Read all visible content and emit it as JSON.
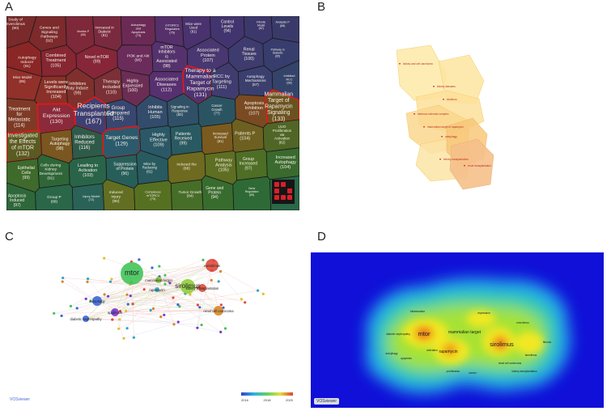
{
  "figure": {
    "panel_labels": [
      "A",
      "B",
      "C",
      "D"
    ]
  },
  "panel_a": {
    "cells": [
      {
        "label": "Study of Everolimus",
        "count": "(90)",
        "color": "#7a2a2a"
      },
      {
        "label": "Genes and Signaling Pathways",
        "count": "(92)",
        "color": "#7c2a2c"
      },
      {
        "label": "Months P",
        "count": "(65)",
        "color": "#7e2839"
      },
      {
        "label": "Increased in Diabetic",
        "count": "(81)",
        "color": "#7a2a3e"
      },
      {
        "label": "Autophagy and Apoptosis",
        "count": "(73)",
        "color": "#6a2a55"
      },
      {
        "label": "mTORC1 Regulates",
        "count": "(75)",
        "color": "#55306a"
      },
      {
        "label": "Mice were Used",
        "count": "(81)",
        "color": "#4a326e"
      },
      {
        "label": "Control Levels",
        "count": "(94)",
        "color": "#42356f"
      },
      {
        "label": "Fibrotic Model",
        "count": "(62)",
        "color": "#3d386c"
      },
      {
        "label": "Analysis P",
        "count": "(68)",
        "color": "#3a3a6a"
      },
      {
        "label": "Autophagy Inducer",
        "count": "(91)",
        "color": "#8a2626"
      },
      {
        "label": "Combined Treatment",
        "count": "(105)",
        "color": "#862630"
      },
      {
        "label": "Novel mTOR",
        "count": "(99)",
        "color": "#862638"
      },
      {
        "label": "PI3K and Akt",
        "count": "(90)",
        "color": "#6b2c5c"
      },
      {
        "label": "mTOR Inhibitors is Associated",
        "count": "(98)",
        "color": "#55326d"
      },
      {
        "label": "Associated Protein",
        "count": "(107)",
        "color": "#483770"
      },
      {
        "label": "Renal Tissues",
        "count": "(100)",
        "color": "#3e3b6f"
      },
      {
        "label": "Pathway in Diabetic",
        "count": "(65)",
        "color": "#373d6c"
      },
      {
        "label": "Mice Model",
        "count": "(85)",
        "color": "#92302a"
      },
      {
        "label": "Levels were Significantly Increased",
        "count": "(104)",
        "color": "#8a3028"
      },
      {
        "label": "Inhibitors may Induce",
        "count": "(99)",
        "color": "#80302c"
      },
      {
        "label": "Therapy Included",
        "count": "(110)",
        "color": "#7a3036"
      },
      {
        "label": "Highly Expressed",
        "count": "(100)",
        "color": "#6c2d55"
      },
      {
        "label": "Associated Diseases",
        "count": "(112)",
        "color": "#573070"
      },
      {
        "label": "Therapy to a Mammalian Target of Rapamycin",
        "count": "(131)",
        "color": "#4d3373"
      },
      {
        "label": "RCC by Targeting",
        "count": "(111)",
        "color": "#413c70"
      },
      {
        "label": "Autophagy Mechanisms",
        "count": "(87)",
        "color": "#3a3f6e"
      },
      {
        "label": "Inhibited RCC",
        "count": "(68)",
        "color": "#344369"
      },
      {
        "label": "Treatment for Metastatic",
        "count": "(114)",
        "color": "#7e3a26"
      },
      {
        "label": "Akt Expression",
        "count": "(130)",
        "color": "#8a2a3a"
      },
      {
        "label": "Recipients Transplanted",
        "count": "(167)",
        "color": "#3e3f72"
      },
      {
        "label": "Group Compared",
        "count": "(115)",
        "color": "#38476f"
      },
      {
        "label": "Inhibits Human",
        "count": "(105)",
        "color": "#334c6b"
      },
      {
        "label": "Signaling in Response",
        "count": "(82)",
        "color": "#2f5066"
      },
      {
        "label": "Cancer Growth",
        "count": "(77)",
        "color": "#2b5463"
      },
      {
        "label": "Apoptosis Inhibition",
        "count": "(107)",
        "color": "#7a4a22"
      },
      {
        "label": "Mammalian Target of Rapamycin Signaling",
        "count": "(133)",
        "color": "#6a5220"
      },
      {
        "label": "Investigated the Effects of mTOR",
        "count": "(132)",
        "color": "#5a5a22"
      },
      {
        "label": "Targeting Autophagy",
        "count": "(98)",
        "color": "#7a5620"
      },
      {
        "label": "Inhibitors Reduced",
        "count": "(116)",
        "color": "#2f5a4a"
      },
      {
        "label": "Target Genes",
        "count": "(129)",
        "color": "#2b5a6c"
      },
      {
        "label": "Highly Effective",
        "count": "(109)",
        "color": "#2a5866"
      },
      {
        "label": "Patients Received",
        "count": "(99)",
        "color": "#295a62"
      },
      {
        "label": "Increased Survival",
        "count": "(81)",
        "color": "#7a5a1e"
      },
      {
        "label": "Patients P",
        "count": "(104)",
        "color": "#6e6020"
      },
      {
        "label": "UUO Proliferation via Activation",
        "count": "(82)",
        "color": "#4f6626"
      },
      {
        "label": "Epithelial Cells",
        "count": "(99)",
        "color": "#3e6a2c"
      },
      {
        "label": "Cells during Kidney Development",
        "count": "(91)",
        "color": "#2e6638"
      },
      {
        "label": "Leading to Activation",
        "count": "(103)",
        "color": "#2a6448"
      },
      {
        "label": "Suppression of Protein",
        "count": "(96)",
        "color": "#285e5a"
      },
      {
        "label": "Mice by Reducing",
        "count": "(81)",
        "color": "#285a60"
      },
      {
        "label": "Induced the",
        "count": "(88)",
        "color": "#6e6a20"
      },
      {
        "label": "Pathway Analysis",
        "count": "(105)",
        "color": "#5e6e22"
      },
      {
        "label": "Group Increased",
        "count": "(97)",
        "color": "#4e6e26"
      },
      {
        "label": "Increased Autophagy",
        "count": "(104)",
        "color": "#3a6a2e"
      },
      {
        "label": "Apoptosis Induced",
        "count": "(97)",
        "color": "#2e683a"
      },
      {
        "label": "Group P",
        "count": "(88)",
        "color": "#2a6648"
      },
      {
        "label": "Injury Model",
        "count": "(72)",
        "color": "#2a6258"
      },
      {
        "label": "Induced Injury",
        "count": "(90)",
        "color": "#626e22"
      },
      {
        "label": "Complexes mTORC1",
        "count": "(73)",
        "color": "#567022"
      },
      {
        "label": "Tumor Growth",
        "count": "(84)",
        "color": "#466e28"
      },
      {
        "label": "Gene and Protein",
        "count": "(94)",
        "color": "#386c2e"
      },
      {
        "label": "Gene Regulation",
        "count": "(65)",
        "color": "#2e6a36"
      },
      {
        "label": "Survival Rate",
        "count": "(70)",
        "color": "#2a6846"
      }
    ]
  },
  "panel_b": {
    "labels": [
      "kidney and cell carcinoma",
      "kidney diseases",
      "tuberous sclerosis complex",
      "sirolimus",
      "mammalian target of rapamycin",
      "autophagy",
      "kidney transplantation",
      "renal transplantation"
    ]
  },
  "panel_c": {
    "nodes": [
      {
        "label": "mtor",
        "color": "#43c45a"
      },
      {
        "label": "mammalian target",
        "color": "#86c23a"
      },
      {
        "label": "sirolimus",
        "color": "#8fce3a"
      },
      {
        "label": "rapamycin",
        "color": "#2ea5c8"
      },
      {
        "label": "everolimus",
        "color": "#e04a3a"
      },
      {
        "label": "autophagy",
        "color": "#3a66d8"
      },
      {
        "label": "apoptosis",
        "color": "#7a3ad0"
      },
      {
        "label": "kidney transplantation",
        "color": "#e04a3a"
      },
      {
        "label": "diabetic nephropathy",
        "color": "#3a66d8"
      },
      {
        "label": "renal cell carcinoma",
        "color": "#d8862a"
      }
    ],
    "legend_ticks": [
      "2016",
      "2018",
      "2020"
    ],
    "logo": "VOSviewer"
  },
  "panel_d": {
    "labels": [
      {
        "text": "mtor",
        "size": "big"
      },
      {
        "text": "mammalian target",
        "size": "mid"
      },
      {
        "text": "rapamycin",
        "size": "mid"
      },
      {
        "text": "sirolimus",
        "size": "big"
      },
      {
        "text": "everolimus",
        "size": "small"
      },
      {
        "text": "activation",
        "size": "small"
      },
      {
        "text": "autophagy",
        "size": "small"
      },
      {
        "text": "apoptosis",
        "size": "small"
      },
      {
        "text": "kidney transplantation",
        "size": "small"
      },
      {
        "text": "expression",
        "size": "small"
      },
      {
        "text": "inflammation",
        "size": "small"
      },
      {
        "text": "proliferation",
        "size": "small"
      },
      {
        "text": "fibrosis",
        "size": "small"
      },
      {
        "text": "diabetic nephropathy",
        "size": "small"
      },
      {
        "text": "renal cell carcinoma",
        "size": "small"
      },
      {
        "text": "tacrolimus",
        "size": "small"
      },
      {
        "text": "cancer",
        "size": "small"
      }
    ],
    "logo": "VOSviewer"
  },
  "chart_data": [
    {
      "type": "voronoi-treemap",
      "panel": "A",
      "items": [
        {
          "label": "Study of Everolimus",
          "value": 90
        },
        {
          "label": "Genes and Signaling Pathways",
          "value": 92
        },
        {
          "label": "Months P",
          "value": 65
        },
        {
          "label": "Increased in Diabetic",
          "value": 81
        },
        {
          "label": "Autophagy and Apoptosis",
          "value": 73
        },
        {
          "label": "mTORC1 Regulates",
          "value": 75
        },
        {
          "label": "Mice were Used",
          "value": 81
        },
        {
          "label": "Control Levels",
          "value": 94
        },
        {
          "label": "Fibrotic Model",
          "value": 62
        },
        {
          "label": "Analysis P",
          "value": 68
        },
        {
          "label": "Autophagy Inducer",
          "value": 91
        },
        {
          "label": "Combined Treatment",
          "value": 105
        },
        {
          "label": "Novel mTOR",
          "value": 99
        },
        {
          "label": "PI3K and Akt",
          "value": 90
        },
        {
          "label": "mTOR Inhibitors is Associated",
          "value": 98
        },
        {
          "label": "Associated Protein",
          "value": 107
        },
        {
          "label": "Renal Tissues",
          "value": 100
        },
        {
          "label": "Pathway in Diabetic",
          "value": 65
        },
        {
          "label": "Mice Model",
          "value": 85
        },
        {
          "label": "Levels were Significantly Increased",
          "value": 104
        },
        {
          "label": "Inhibitors may Induce",
          "value": 99
        },
        {
          "label": "Therapy Included",
          "value": 110
        },
        {
          "label": "Highly Expressed",
          "value": 100
        },
        {
          "label": "Associated Diseases",
          "value": 112
        },
        {
          "label": "Therapy to a Mammalian Target of Rapamycin",
          "value": 131
        },
        {
          "label": "RCC by Targeting",
          "value": 111
        },
        {
          "label": "Autophagy Mechanisms",
          "value": 87
        },
        {
          "label": "Inhibited RCC",
          "value": 68
        },
        {
          "label": "Treatment for Metastatic",
          "value": 114
        },
        {
          "label": "Akt Expression",
          "value": 130
        },
        {
          "label": "Recipients Transplanted",
          "value": 167
        },
        {
          "label": "Group Compared",
          "value": 115
        },
        {
          "label": "Inhibits Human",
          "value": 105
        },
        {
          "label": "Signaling in Response",
          "value": 82
        },
        {
          "label": "Cancer Growth",
          "value": 77
        },
        {
          "label": "Apoptosis Inhibition",
          "value": 107
        },
        {
          "label": "Mammalian Target of Rapamycin Signaling",
          "value": 133
        },
        {
          "label": "Investigated the Effects of mTOR",
          "value": 132
        },
        {
          "label": "Targeting Autophagy",
          "value": 98
        },
        {
          "label": "Inhibitors Reduced",
          "value": 116
        },
        {
          "label": "Target Genes",
          "value": 129
        },
        {
          "label": "Highly Effective",
          "value": 109
        },
        {
          "label": "Patients Received",
          "value": 99
        },
        {
          "label": "Increased Survival",
          "value": 81
        },
        {
          "label": "Patients P",
          "value": 104
        },
        {
          "label": "UUO Proliferation via Activation",
          "value": 82
        },
        {
          "label": "Epithelial Cells",
          "value": 99
        },
        {
          "label": "Cells during Kidney Development",
          "value": 91
        },
        {
          "label": "Leading to Activation",
          "value": 103
        },
        {
          "label": "Suppression of Protein",
          "value": 96
        },
        {
          "label": "Mice by Reducing",
          "value": 81
        },
        {
          "label": "Induced the",
          "value": 88
        },
        {
          "label": "Pathway Analysis",
          "value": 105
        },
        {
          "label": "Group Increased",
          "value": 97
        },
        {
          "label": "Increased Autophagy",
          "value": 104
        },
        {
          "label": "Apoptosis Induced",
          "value": 97
        },
        {
          "label": "Group P",
          "value": 88
        },
        {
          "label": "Injury Model",
          "value": 72
        },
        {
          "label": "Induced Injury",
          "value": 90
        },
        {
          "label": "Complexes mTORC1",
          "value": 73
        },
        {
          "label": "Tumor Growth",
          "value": 84
        },
        {
          "label": "Gene and Protein",
          "value": 94
        },
        {
          "label": "Gene Regulation",
          "value": 65
        },
        {
          "label": "Survival Rate",
          "value": 70
        }
      ]
    },
    {
      "type": "cluster-map",
      "panel": "B"
    },
    {
      "type": "network",
      "panel": "C",
      "legend": {
        "min": 2016,
        "max": 2020
      }
    },
    {
      "type": "heatmap",
      "panel": "D"
    }
  ]
}
